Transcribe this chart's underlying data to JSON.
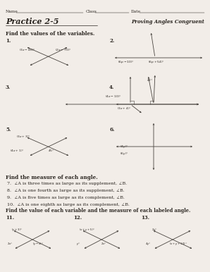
{
  "bg_color": "#f2ede8",
  "text_color": "#2a2520",
  "line_color": "#4a4540",
  "name_label": "Name",
  "class_label": "Class",
  "date_label": "Date",
  "title": "Practice 2-5",
  "subtitle": "Proving Angles Congruent",
  "section1": "Find the values of the variables.",
  "section2": "Find the measure of each angle.",
  "angle_problems": [
    "7.  ∠A is three times as large as its supplement, ∠B.",
    "8.  ∠A is one fourth as large as its supplement, ∠B.",
    "9.  ∠A is five times as large as its complement, ∠B.",
    "10.  ∠A is one eighth as large as its complement, ∠B."
  ],
  "section3": "Find the value of each variable and the measure of each labeled angle."
}
